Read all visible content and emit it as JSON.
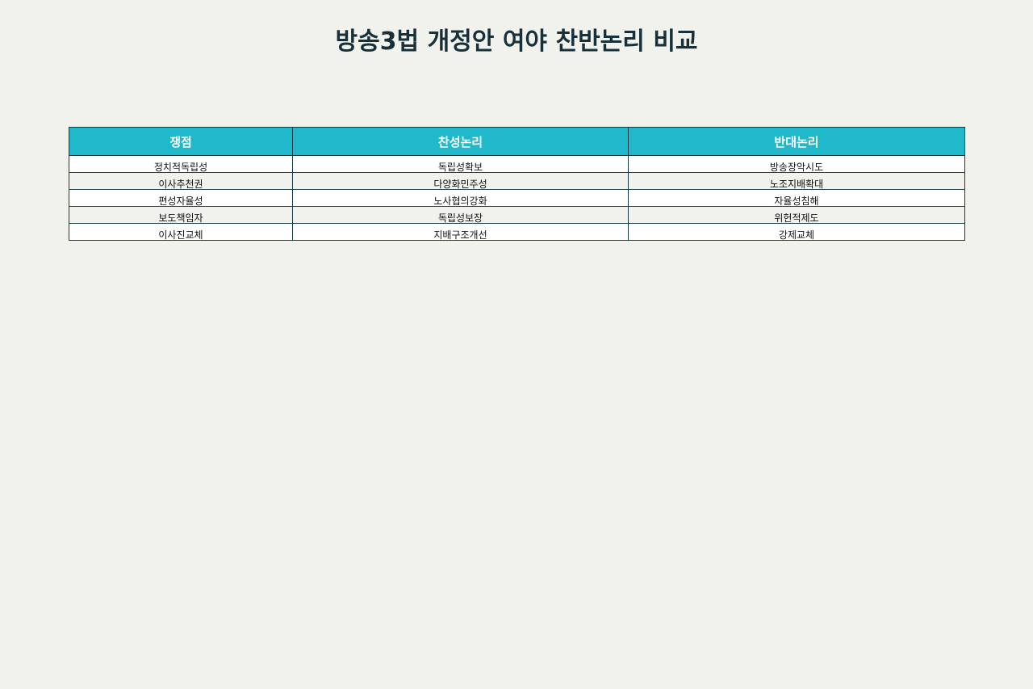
{
  "title": "방송3법 개정안 여야 찬반논리 비교",
  "table": {
    "headers": [
      "쟁점",
      "찬성논리",
      "반대논리"
    ],
    "rows": [
      [
        "정치적독립성",
        "독립성확보",
        "방송장악시도"
      ],
      [
        "이사추천권",
        "다양화민주성",
        "노조지배확대"
      ],
      [
        "편성자율성",
        "노사협의강화",
        "자율성침해"
      ],
      [
        "보도책임자",
        "독립성보장",
        "위헌적제도"
      ],
      [
        "이사진교체",
        "지배구조개선",
        "강제교체"
      ]
    ]
  },
  "colors": {
    "background": "#f2f2ec",
    "header_bg": "#20b9cc",
    "header_text": "#ffffff",
    "title_text": "#173039",
    "border": "#1b3a44"
  }
}
